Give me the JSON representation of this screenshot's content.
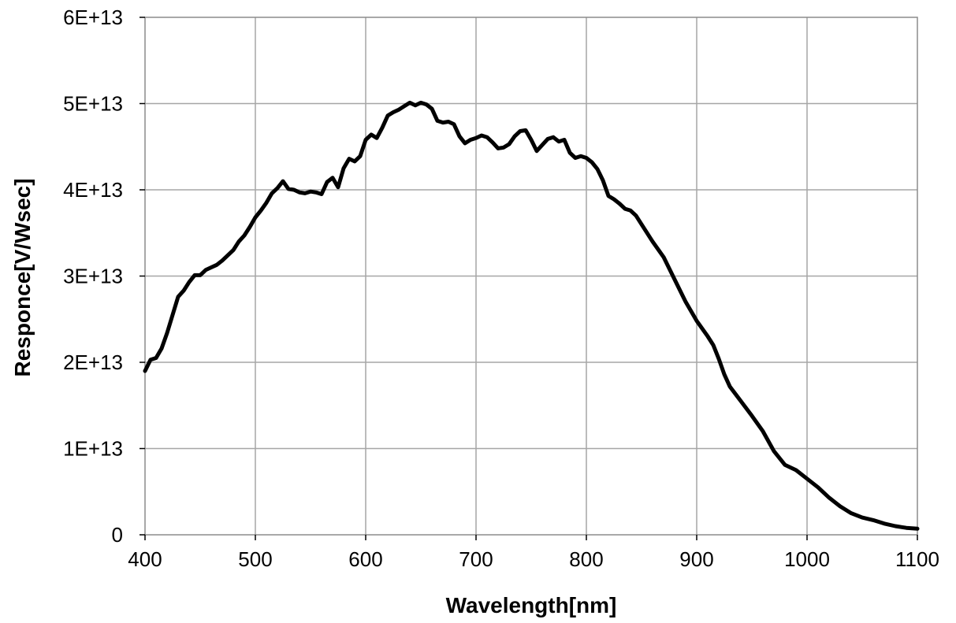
{
  "chart_data": {
    "type": "line",
    "title": "",
    "xlabel": "Wavelength[nm]",
    "ylabel": "Responce[V/Wsec]",
    "xlim": [
      400,
      1100
    ],
    "ylim": [
      0,
      60000000000000
    ],
    "x_ticks": [
      400,
      500,
      600,
      700,
      800,
      900,
      1000,
      1100
    ],
    "y_ticks": [
      0,
      10000000000000,
      20000000000000,
      30000000000000,
      40000000000000,
      50000000000000,
      60000000000000
    ],
    "x_tick_labels": [
      "400",
      "500",
      "600",
      "700",
      "800",
      "900",
      "1000",
      "1100"
    ],
    "y_tick_labels": [
      "0",
      "1E+13",
      "2E+13",
      "3E+13",
      "4E+13",
      "5E+13",
      "6E+13"
    ],
    "grid": true,
    "line_color": "#000000",
    "grid_color": "#a6a6a6",
    "series": [
      {
        "x": [
          400,
          405,
          410,
          415,
          420,
          425,
          430,
          435,
          440,
          445,
          450,
          455,
          460,
          465,
          470,
          475,
          480,
          485,
          490,
          495,
          500,
          505,
          510,
          515,
          520,
          525,
          530,
          535,
          540,
          545,
          550,
          555,
          560,
          565,
          570,
          575,
          580,
          585,
          590,
          595,
          600,
          605,
          610,
          615,
          620,
          625,
          630,
          635,
          640,
          645,
          650,
          655,
          660,
          665,
          670,
          675,
          680,
          685,
          690,
          695,
          700,
          705,
          710,
          715,
          720,
          725,
          730,
          735,
          740,
          745,
          750,
          755,
          760,
          765,
          770,
          775,
          780,
          785,
          790,
          795,
          800,
          805,
          810,
          815,
          820,
          825,
          830,
          835,
          840,
          845,
          850,
          860,
          870,
          880,
          890,
          900,
          910,
          915,
          920,
          925,
          930,
          940,
          950,
          960,
          970,
          980,
          990,
          1000,
          1010,
          1020,
          1030,
          1040,
          1050,
          1060,
          1070,
          1080,
          1090,
          1100
        ],
        "y": [
          19000000000000,
          20300000000000,
          20500000000000,
          21600000000000,
          23400000000000,
          25500000000000,
          27600000000000,
          28300000000000,
          29300000000000,
          30100000000000,
          30100000000000,
          30700000000000,
          31000000000000,
          31300000000000,
          31800000000000,
          32400000000000,
          33000000000000,
          34000000000000,
          34700000000000,
          35700000000000,
          36800000000000,
          37600000000000,
          38500000000000,
          39600000000000,
          40200000000000,
          41000000000000,
          40100000000000,
          40000000000000,
          39700000000000,
          39600000000000,
          39800000000000,
          39700000000000,
          39500000000000,
          40900000000000,
          41400000000000,
          40300000000000,
          42500000000000,
          43600000000000,
          43300000000000,
          43900000000000,
          45800000000000,
          46400000000000,
          46000000000000,
          47200000000000,
          48600000000000,
          49000000000000,
          49300000000000,
          49700000000000,
          50100000000000,
          49800000000000,
          50100000000000,
          49900000000000,
          49400000000000,
          48000000000000,
          47800000000000,
          47900000000000,
          47600000000000,
          46200000000000,
          45400000000000,
          45800000000000,
          46000000000000,
          46300000000000,
          46100000000000,
          45500000000000,
          44800000000000,
          44900000000000,
          45300000000000,
          46200000000000,
          46800000000000,
          46900000000000,
          45800000000000,
          44500000000000,
          45200000000000,
          45900000000000,
          46100000000000,
          45600000000000,
          45800000000000,
          44300000000000,
          43700000000000,
          43900000000000,
          43700000000000,
          43200000000000,
          42400000000000,
          41100000000000,
          39300000000000,
          38900000000000,
          38400000000000,
          37800000000000,
          37600000000000,
          37000000000000,
          36000000000000,
          34000000000000,
          32200000000000,
          29600000000000,
          27000000000000,
          24800000000000,
          23000000000000,
          22000000000000,
          20400000000000,
          18600000000000,
          17200000000000,
          15500000000000,
          13800000000000,
          12000000000000,
          9700000000000,
          8100000000000,
          7500000000000,
          6500000000000,
          5500000000000,
          4300000000000,
          3300000000000,
          2500000000000,
          2000000000000,
          1700000000000,
          1300000000000,
          1000000000000,
          800000000000,
          700000000000
        ]
      }
    ]
  }
}
